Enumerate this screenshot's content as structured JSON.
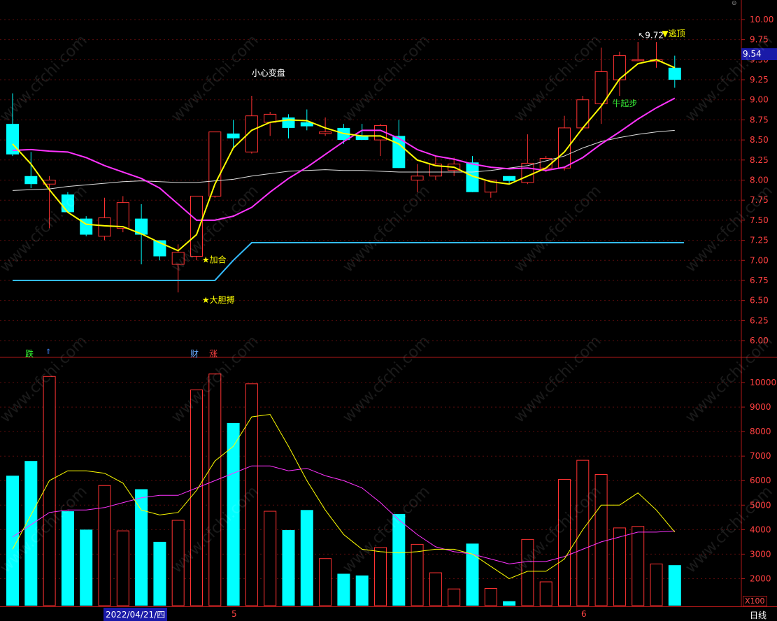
{
  "price_value_label": "9.54",
  "bottom_bar": {
    "date_label": "2022/04/21/四",
    "month_markers": [
      "5",
      "6"
    ],
    "period_label": "日线"
  },
  "volume_unit": "X100",
  "signal_badges": [
    "跌",
    "财",
    "涨"
  ],
  "watermark": "www.cfchi.com",
  "colors": {
    "up": "#ff3232",
    "down": "#00ffff",
    "ma_yellow": "#ffff00",
    "ma_magenta": "#ff33ff",
    "ma_white": "#dddddd",
    "support_line": "#33bbff",
    "axis": "#b01818"
  },
  "chart_data": [
    {
      "type": "candlestick",
      "ylim": [
        5.8,
        10.2
      ],
      "yticks": [
        6.0,
        6.25,
        6.5,
        6.75,
        7.0,
        7.25,
        7.5,
        7.75,
        8.0,
        8.25,
        8.5,
        8.75,
        9.0,
        9.25,
        9.5,
        9.75,
        10.0
      ],
      "candles": [
        {
          "o": 8.7,
          "h": 9.08,
          "l": 8.3,
          "c": 8.32
        },
        {
          "o": 8.05,
          "h": 8.35,
          "l": 7.9,
          "c": 7.95
        },
        {
          "o": 7.95,
          "h": 8.05,
          "l": 7.4,
          "c": 8.0
        },
        {
          "o": 7.82,
          "h": 7.85,
          "l": 7.6,
          "c": 7.6
        },
        {
          "o": 7.52,
          "h": 7.55,
          "l": 7.3,
          "c": 7.32
        },
        {
          "o": 7.3,
          "h": 7.78,
          "l": 7.25,
          "c": 7.53
        },
        {
          "o": 7.4,
          "h": 7.8,
          "l": 7.35,
          "c": 7.72
        },
        {
          "o": 7.52,
          "h": 7.7,
          "l": 6.95,
          "c": 7.32
        },
        {
          "o": 7.25,
          "h": 7.25,
          "l": 7.0,
          "c": 7.05
        },
        {
          "o": 6.95,
          "h": 7.2,
          "l": 6.6,
          "c": 7.1
        },
        {
          "o": 7.05,
          "h": 7.8,
          "l": 7.0,
          "c": 7.8
        },
        {
          "o": 7.8,
          "h": 8.6,
          "l": 7.78,
          "c": 8.6
        },
        {
          "o": 8.58,
          "h": 8.75,
          "l": 8.4,
          "c": 8.52
        },
        {
          "o": 8.35,
          "h": 9.05,
          "l": 8.33,
          "c": 8.8
        },
        {
          "o": 8.72,
          "h": 8.85,
          "l": 8.55,
          "c": 8.82
        },
        {
          "o": 8.78,
          "h": 8.82,
          "l": 8.52,
          "c": 8.65
        },
        {
          "o": 8.72,
          "h": 8.88,
          "l": 8.62,
          "c": 8.67
        },
        {
          "o": 8.58,
          "h": 8.78,
          "l": 8.55,
          "c": 8.6
        },
        {
          "o": 8.65,
          "h": 8.7,
          "l": 8.45,
          "c": 8.5
        },
        {
          "o": 8.55,
          "h": 8.7,
          "l": 8.5,
          "c": 8.5
        },
        {
          "o": 8.5,
          "h": 8.7,
          "l": 8.3,
          "c": 8.68
        },
        {
          "o": 8.55,
          "h": 8.75,
          "l": 8.15,
          "c": 8.15
        },
        {
          "o": 8.0,
          "h": 8.2,
          "l": 7.85,
          "c": 8.05
        },
        {
          "o": 8.05,
          "h": 8.3,
          "l": 8.0,
          "c": 8.2
        },
        {
          "o": 8.12,
          "h": 8.28,
          "l": 8.05,
          "c": 8.2
        },
        {
          "o": 8.22,
          "h": 8.3,
          "l": 7.85,
          "c": 7.85
        },
        {
          "o": 7.85,
          "h": 8.0,
          "l": 7.78,
          "c": 8.0
        },
        {
          "o": 8.05,
          "h": 8.05,
          "l": 7.95,
          "c": 7.99
        },
        {
          "o": 7.97,
          "h": 8.57,
          "l": 7.95,
          "c": 8.21
        },
        {
          "o": 8.15,
          "h": 8.3,
          "l": 8.1,
          "c": 8.27
        },
        {
          "o": 8.15,
          "h": 8.8,
          "l": 8.12,
          "c": 8.65
        },
        {
          "o": 8.65,
          "h": 9.05,
          "l": 8.62,
          "c": 9.0
        },
        {
          "o": 8.95,
          "h": 9.65,
          "l": 8.7,
          "c": 9.35
        },
        {
          "o": 9.25,
          "h": 9.6,
          "l": 9.05,
          "c": 9.55
        },
        {
          "o": 9.5,
          "h": 9.72,
          "l": 9.48,
          "c": 9.5
        },
        {
          "o": 9.48,
          "h": 9.72,
          "l": 9.4,
          "c": 9.5
        },
        {
          "o": 9.4,
          "h": 9.55,
          "l": 9.15,
          "c": 9.25
        }
      ],
      "ma_yellow": [
        8.45,
        8.2,
        7.88,
        7.6,
        7.45,
        7.43,
        7.42,
        7.33,
        7.22,
        7.12,
        7.32,
        7.95,
        8.4,
        8.62,
        8.72,
        8.75,
        8.74,
        8.65,
        8.58,
        8.55,
        8.55,
        8.45,
        8.25,
        8.18,
        8.16,
        8.05,
        7.98,
        7.95,
        8.05,
        8.15,
        8.35,
        8.65,
        8.92,
        9.26,
        9.45,
        9.5,
        9.4
      ],
      "ma_magenta": [
        8.37,
        8.38,
        8.36,
        8.35,
        8.28,
        8.18,
        8.1,
        8.02,
        7.9,
        7.7,
        7.5,
        7.5,
        7.55,
        7.66,
        7.85,
        8.02,
        8.16,
        8.32,
        8.48,
        8.62,
        8.62,
        8.52,
        8.38,
        8.3,
        8.26,
        8.2,
        8.16,
        8.14,
        8.15,
        8.12,
        8.16,
        8.28,
        8.45,
        8.6,
        8.76,
        8.9,
        9.02
      ],
      "ma_white": [
        7.87,
        7.88,
        7.89,
        7.92,
        7.94,
        7.96,
        7.98,
        7.99,
        7.98,
        7.97,
        7.97,
        7.99,
        8.01,
        8.05,
        8.08,
        8.11,
        8.12,
        8.13,
        8.12,
        8.12,
        8.11,
        8.1,
        8.1,
        8.1,
        8.1,
        8.1,
        8.12,
        8.15,
        8.18,
        8.24,
        8.3,
        8.4,
        8.48,
        8.53,
        8.57,
        8.6,
        8.62
      ],
      "support_line": {
        "x": [
          0,
          11,
          12,
          13,
          36.5
        ],
        "y": [
          6.75,
          6.75,
          7.0,
          7.22,
          7.22
        ]
      },
      "annotations": [
        {
          "text": "小心变盘",
          "bar": 13,
          "price": 9.3,
          "color": "#ffffff"
        },
        {
          "text": "★加合",
          "bar": 10.3,
          "price": 6.97,
          "color": "#ffff00"
        },
        {
          "text": "★大胆搏",
          "bar": 10.3,
          "price": 6.47,
          "color": "#ffff00"
        },
        {
          "text": "牛起步",
          "bar": 32.6,
          "price": 8.92,
          "color": "#33dd33"
        },
        {
          "text": "↖9.72",
          "bar": 34.0,
          "price": 9.77,
          "color": "#ffffff"
        },
        {
          "text": "▼逃顶",
          "bar": 35.3,
          "price": 9.79,
          "color": "#ffff00"
        }
      ]
    },
    {
      "type": "bar",
      "series": "volume",
      "ylim": [
        900,
        11000
      ],
      "yticks": [
        2000,
        3000,
        4000,
        5000,
        6000,
        7000,
        8000,
        9000,
        10000
      ],
      "values": [
        6200,
        6800,
        10250,
        4750,
        4000,
        5800,
        3950,
        5650,
        3500,
        4380,
        9700,
        10350,
        8350,
        9950,
        4750,
        3980,
        4800,
        2820,
        2200,
        2130,
        3270,
        4640,
        3400,
        2240,
        1580,
        3430,
        1600,
        1080,
        3600,
        1870,
        6050,
        6830,
        6250,
        4070,
        4130,
        2600,
        2550
      ],
      "ma_yellow": [
        3200,
        4600,
        6000,
        6400,
        6400,
        6300,
        5900,
        4800,
        4600,
        4700,
        5600,
        6800,
        7400,
        8600,
        8700,
        7400,
        6000,
        4800,
        3800,
        3200,
        3100,
        3050,
        3100,
        3200,
        3200,
        3000,
        2500,
        2000,
        2300,
        2300,
        2800,
        4000,
        5000,
        5000,
        5500,
        4800,
        3900
      ],
      "ma_magenta": [
        3700,
        4200,
        4700,
        4800,
        4800,
        4900,
        5100,
        5300,
        5400,
        5400,
        5700,
        6000,
        6300,
        6600,
        6600,
        6400,
        6500,
        6200,
        6000,
        5700,
        5100,
        4400,
        3800,
        3300,
        3100,
        3000,
        2800,
        2600,
        2700,
        2700,
        2900,
        3200,
        3500,
        3700,
        3900,
        3900,
        3950
      ]
    }
  ]
}
